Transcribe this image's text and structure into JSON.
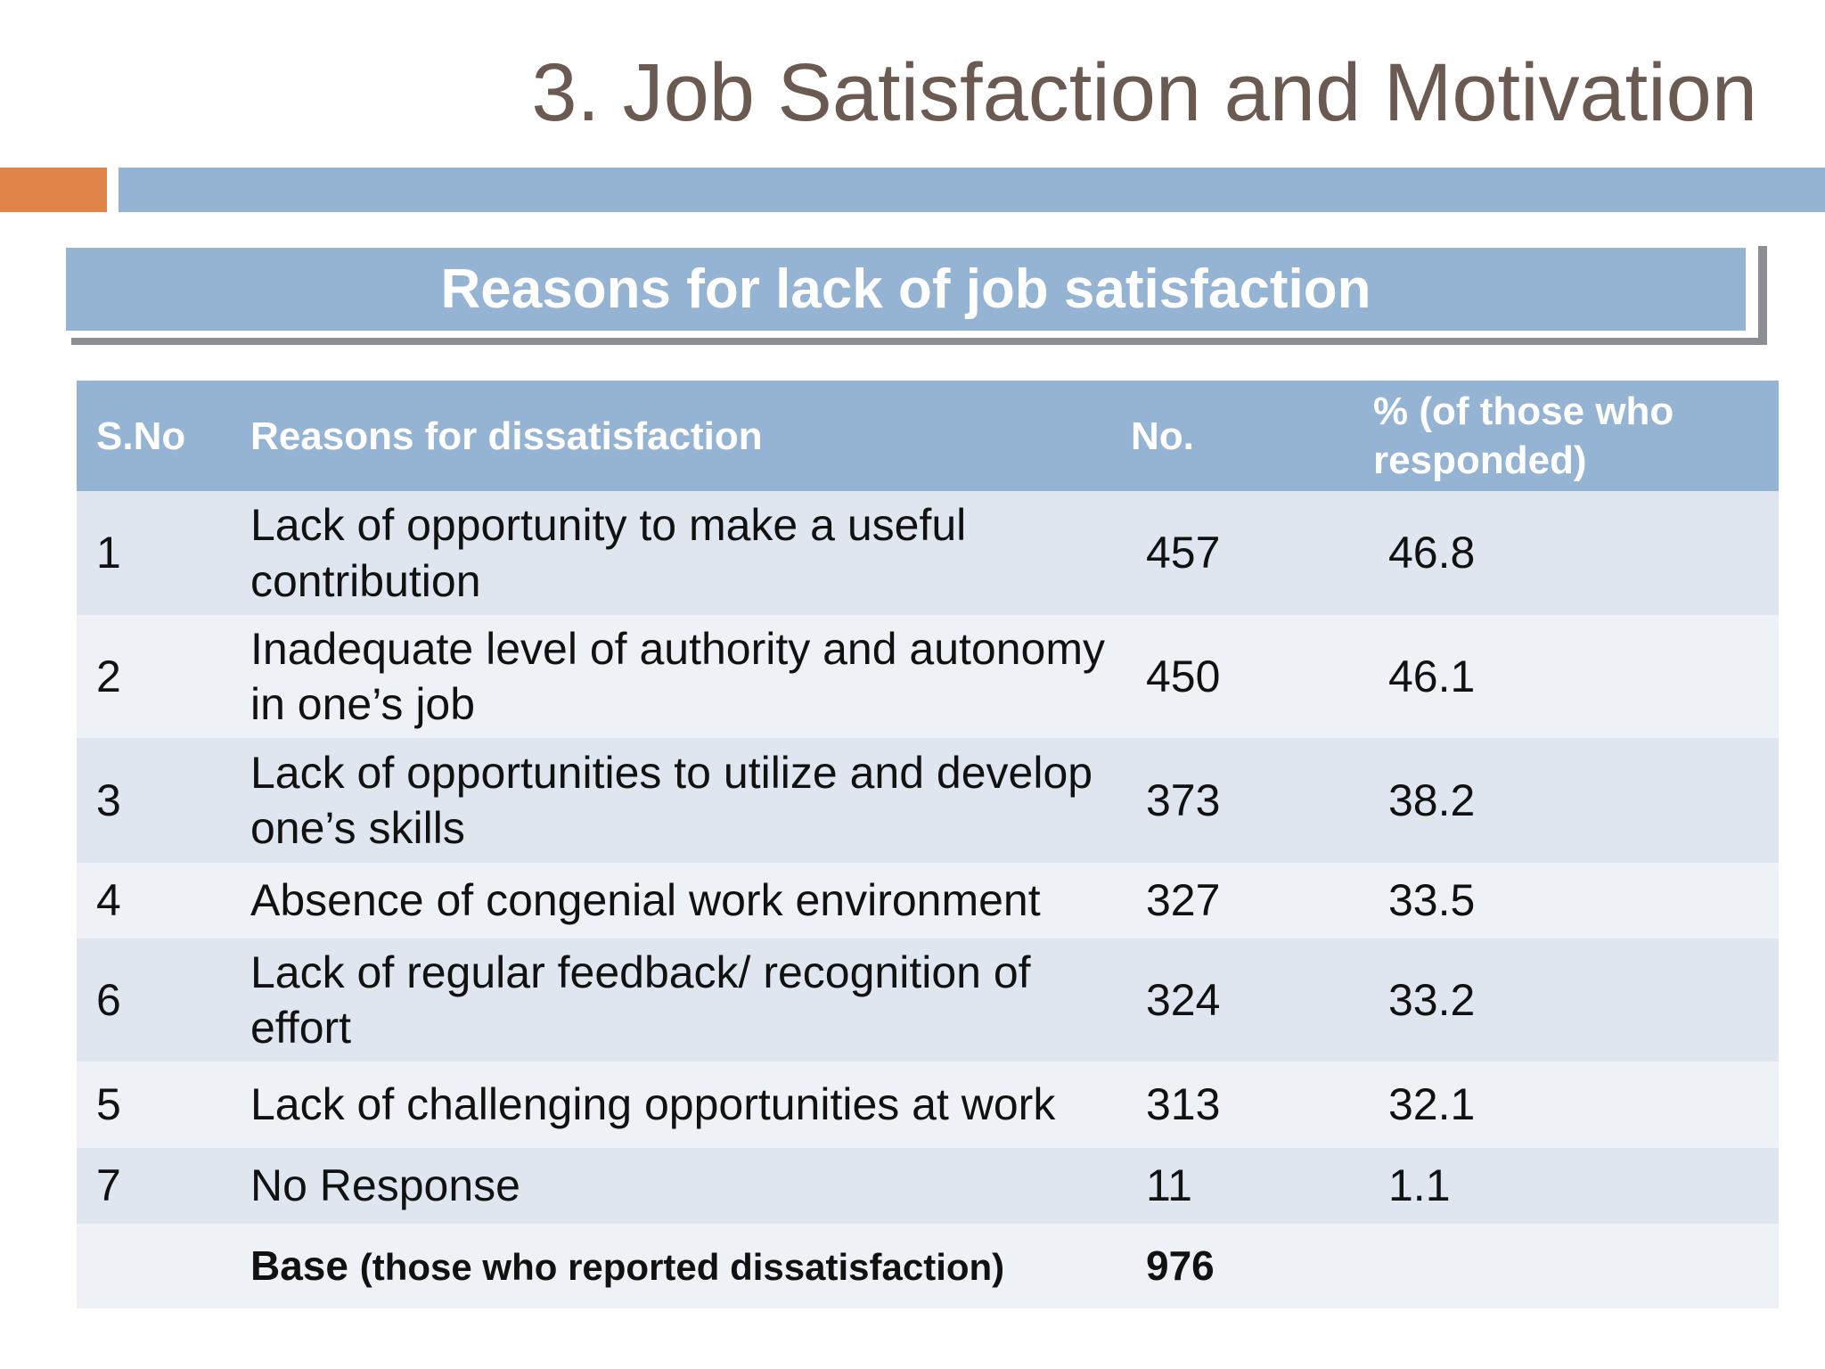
{
  "header": {
    "title": "3. Job Satisfaction and Motivation",
    "subtitle": "Reasons for lack of job satisfaction"
  },
  "table": {
    "columns": [
      "S.No",
      "Reasons for dissatisfaction",
      "No.",
      "% (of those who responded)"
    ],
    "rows": [
      [
        "1",
        "Lack of opportunity to make a useful contribution",
        "457",
        "46.8"
      ],
      [
        "2",
        "Inadequate level of authority and autonomy in one’s job",
        "450",
        "46.1"
      ],
      [
        "3",
        "Lack of opportunities to utilize and develop one’s skills",
        "373",
        "38.2"
      ],
      [
        "4",
        "Absence of congenial work environment",
        "327",
        "33.5"
      ],
      [
        "6",
        "Lack of regular feedback/ recognition of effort",
        "324",
        "33.2"
      ],
      [
        "5",
        "Lack of challenging opportunities at work",
        "313",
        "32.1"
      ],
      [
        "7",
        "No Response",
        "11",
        "1.1"
      ]
    ],
    "base": {
      "label": "Base",
      "note": "(those who reported dissatisfaction)",
      "value": "976"
    }
  }
}
